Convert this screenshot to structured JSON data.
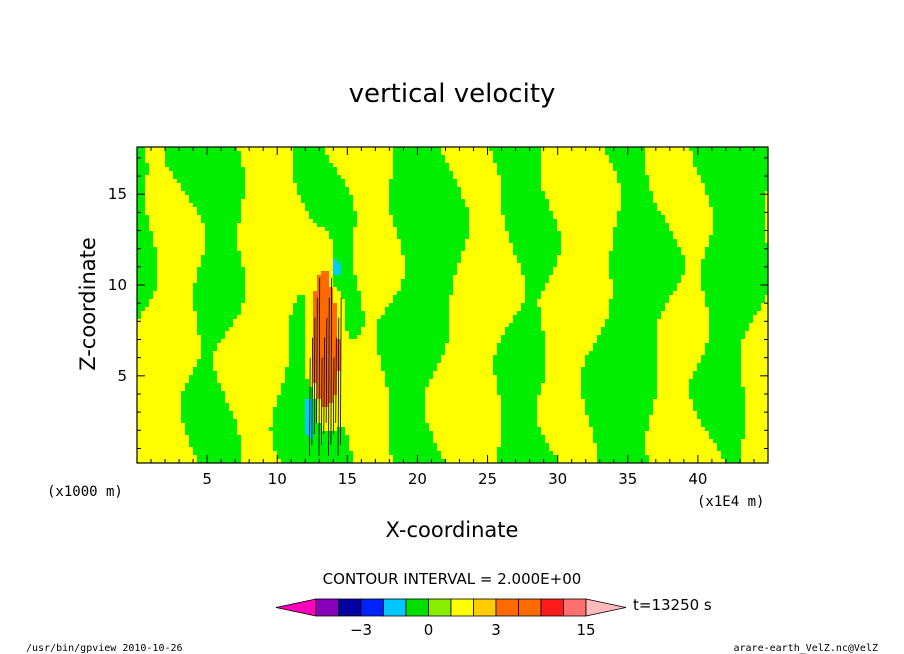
{
  "chart_data": {
    "type": "heatmap",
    "title": "vertical velocity",
    "xlabel": "X-coordinate",
    "ylabel": "Z-coordinate",
    "x_unit_left": "(x1000 m)",
    "x_unit_right": "(x1E4 m)",
    "xlim": [
      0,
      45
    ],
    "ylim": [
      0.2,
      17.6
    ],
    "xticks": [
      5,
      10,
      15,
      20,
      25,
      30,
      35,
      40
    ],
    "yticks": [
      5,
      10,
      15
    ],
    "contour_interval": "CONTOUR INTERVAL = 2.000E+00",
    "time_label": "t=13250 s",
    "colorbar_labels": [
      {
        "value": -3,
        "text": "−3"
      },
      {
        "value": 0,
        "text": "0"
      },
      {
        "value": 3,
        "text": "3"
      },
      {
        "value": 15,
        "text": "15"
      }
    ],
    "colorbar_levels": [
      {
        "from": -7,
        "to": -5,
        "color": "#8800bb"
      },
      {
        "from": -5,
        "to": -3,
        "color": "#0000a0"
      },
      {
        "from": -3,
        "to": -2,
        "color": "#0022ff"
      },
      {
        "from": -2,
        "to": -1,
        "color": "#00c8ff"
      },
      {
        "from": -1,
        "to": 0,
        "color": "#00dd00"
      },
      {
        "from": 0,
        "to": 1,
        "color": "#88ee00"
      },
      {
        "from": 1,
        "to": 2,
        "color": "#ffff00"
      },
      {
        "from": 2,
        "to": 3,
        "color": "#ffcc00"
      },
      {
        "from": 3,
        "to": 5,
        "color": "#ff6a00"
      },
      {
        "from": 5,
        "to": 9,
        "color": "#ff6a00"
      },
      {
        "from": 9,
        "to": 11,
        "color": "#ff1a1a"
      },
      {
        "from": 11,
        "to": 15,
        "color": "#ff7070"
      }
    ],
    "colorbar_low_end_color": "#ff00bb",
    "colorbar_high_end_color": "#ffbbbb",
    "field_colors": {
      "positive": "#ffff00",
      "near_zero": "#00ee00",
      "updraft": "#ff6a00",
      "downdraft": "#00ccff"
    },
    "grid": false
  },
  "footer": {
    "left": "/usr/bin/gpview   2010-10-26",
    "right": "arare-earth_VelZ.nc@VelZ"
  }
}
